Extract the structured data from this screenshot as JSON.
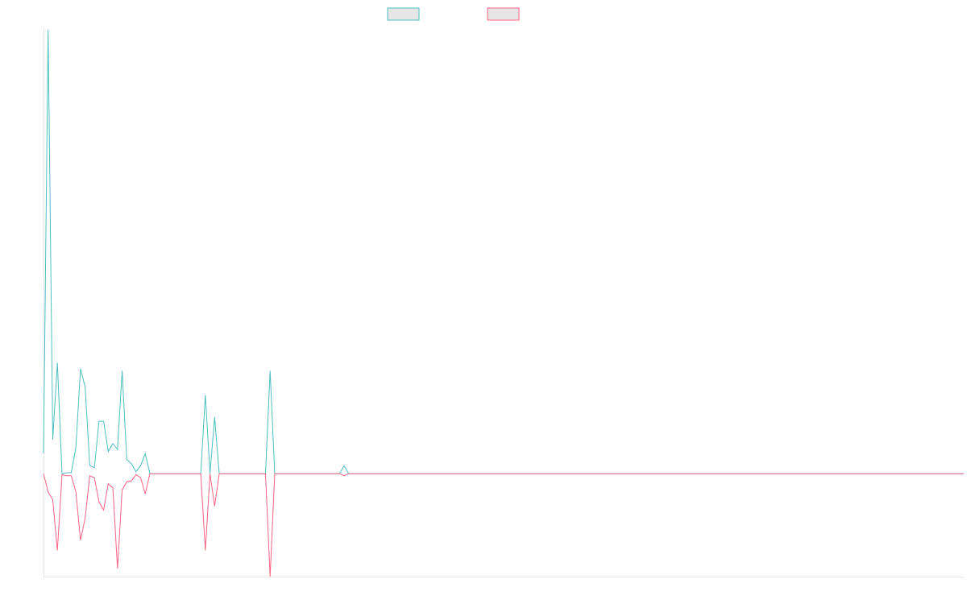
{
  "chart_data": {
    "type": "line",
    "title": "",
    "xlabel": "",
    "ylabel": "",
    "ylim": [
      -51,
      220
    ],
    "x_count": 200,
    "grid": false,
    "legend_position": "top-center",
    "series": [
      {
        "color": "#4bc0c0",
        "fill": "#e6e6e6",
        "points": [
          [
            0,
            10
          ],
          [
            1,
            220
          ],
          [
            2,
            17
          ],
          [
            3,
            55
          ],
          [
            4,
            0
          ],
          [
            5,
            0.5
          ],
          [
            6,
            0.5
          ],
          [
            7,
            13
          ],
          [
            8,
            52
          ],
          [
            9,
            43
          ],
          [
            10,
            4
          ],
          [
            11,
            3
          ],
          [
            12,
            26
          ],
          [
            13,
            26
          ],
          [
            14,
            11
          ],
          [
            15,
            15
          ],
          [
            16,
            12
          ],
          [
            17,
            51
          ],
          [
            18,
            7
          ],
          [
            19,
            5
          ],
          [
            20,
            1
          ],
          [
            21,
            4
          ],
          [
            22,
            10
          ],
          [
            23,
            0
          ],
          [
            34,
            0
          ],
          [
            35,
            39
          ],
          [
            36,
            0
          ],
          [
            37,
            28
          ],
          [
            38,
            0
          ],
          [
            48,
            0
          ],
          [
            49,
            51
          ],
          [
            50,
            0
          ],
          [
            64,
            0
          ],
          [
            65,
            4
          ],
          [
            66,
            0
          ],
          [
            199,
            0
          ]
        ]
      },
      {
        "color": "#ff6384",
        "fill": "#e6e6e6",
        "points": [
          [
            0,
            0
          ],
          [
            1,
            -9
          ],
          [
            2,
            -13
          ],
          [
            3,
            -38
          ],
          [
            4,
            -0.5
          ],
          [
            5,
            -1
          ],
          [
            6,
            -1
          ],
          [
            7,
            -9
          ],
          [
            8,
            -33
          ],
          [
            9,
            -22
          ],
          [
            10,
            -1
          ],
          [
            11,
            -2
          ],
          [
            12,
            -14
          ],
          [
            13,
            -18
          ],
          [
            14,
            -5
          ],
          [
            15,
            -7
          ],
          [
            16,
            -47
          ],
          [
            17,
            -8
          ],
          [
            18,
            -4
          ],
          [
            19,
            -3.5
          ],
          [
            20,
            -0.5
          ],
          [
            21,
            -2
          ],
          [
            22,
            -10
          ],
          [
            23,
            0
          ],
          [
            34,
            0
          ],
          [
            35,
            -38
          ],
          [
            36,
            0
          ],
          [
            37,
            -16
          ],
          [
            38,
            0
          ],
          [
            48,
            0
          ],
          [
            49,
            -51
          ],
          [
            50,
            0
          ],
          [
            64,
            0
          ],
          [
            65,
            -1
          ],
          [
            66,
            0
          ],
          [
            199,
            0
          ]
        ]
      }
    ]
  }
}
